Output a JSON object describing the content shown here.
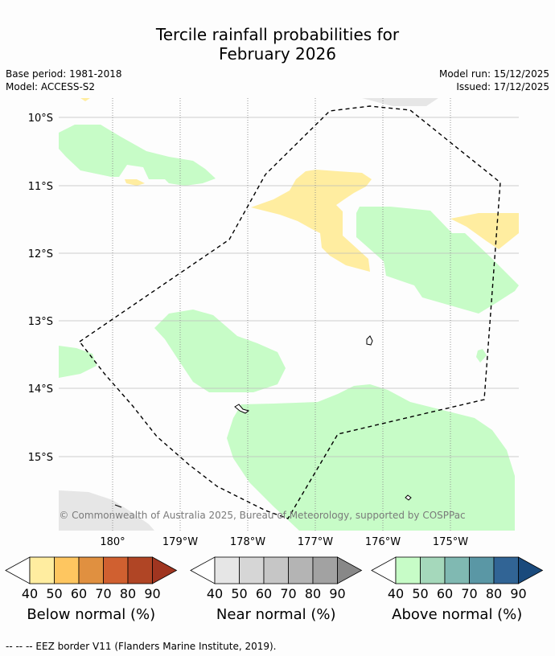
{
  "title": {
    "line1": "Tercile rainfall probabilities for",
    "line2": "February 2026"
  },
  "meta": {
    "base_period": "Base period: 1981-2018",
    "model": "Model: ACCESS-S2",
    "model_run": "Model run: 15/12/2025",
    "issued": "Issued: 17/12/2025"
  },
  "map": {
    "lat_labels": [
      "10°S",
      "11°S",
      "12°S",
      "13°S",
      "14°S",
      "15°S"
    ],
    "lon_labels": [
      "180°",
      "179°W",
      "178°W",
      "177°W",
      "176°W",
      "175°W"
    ],
    "copyright": "© Commonwealth of Australia 2025, Bureau of Meteorology, supported by COSPPac",
    "colors": {
      "land_gray": "#e6e6e6",
      "below_light": "#ffeda0",
      "above_light": "#c7fcc7"
    }
  },
  "colorbars": [
    {
      "label": "Below normal (%)",
      "ticks": [
        "40",
        "50",
        "60",
        "70",
        "80",
        "90"
      ],
      "colors": [
        "#ffeda0",
        "#fec660",
        "#e09040",
        "#d06030",
        "#b04525",
        "#a03520"
      ]
    },
    {
      "label": "Near normal (%)",
      "ticks": [
        "40",
        "50",
        "60",
        "70",
        "80",
        "90"
      ],
      "colors": [
        "#e6e6e6",
        "#d6d6d6",
        "#c6c6c6",
        "#b4b4b4",
        "#a2a2a2",
        "#888888"
      ]
    },
    {
      "label": "Above normal (%)",
      "ticks": [
        "40",
        "50",
        "60",
        "70",
        "80",
        "90"
      ],
      "colors": [
        "#c7fcc7",
        "#a5d8bb",
        "#80b9b2",
        "#5a97a5",
        "#316495",
        "#1a4a7c"
      ]
    }
  ],
  "footer": "--  --  -- EEZ border V11 (Flanders Marine Institute, 2019)."
}
